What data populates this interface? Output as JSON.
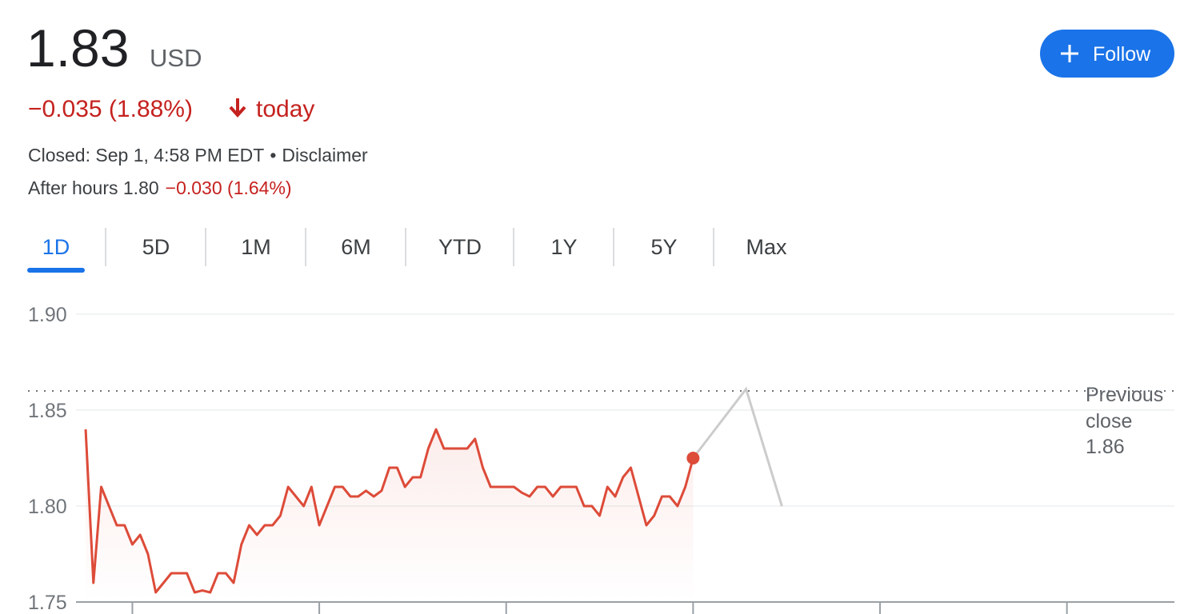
{
  "quote": {
    "price": "1.83",
    "currency": "USD",
    "change": "−0.035 (1.88%)",
    "period": "today",
    "status": "Closed: Sep 1, 4:58 PM EDT",
    "separator": "•",
    "disclaimer": "Disclaimer",
    "after_hours_label": "After hours 1.80",
    "after_hours_change": "−0.030 (1.64%)"
  },
  "follow_button": "Follow",
  "tabs": {
    "items": [
      "1D",
      "5D",
      "1M",
      "6M",
      "YTD",
      "1Y",
      "5Y",
      "Max"
    ],
    "active": 0
  },
  "chart_data": {
    "type": "line",
    "x": [
      570,
      575,
      580,
      585,
      590,
      595,
      600,
      605,
      610,
      615,
      620,
      625,
      630,
      635,
      640,
      645,
      650,
      655,
      660,
      665,
      670,
      675,
      680,
      685,
      690,
      695,
      700,
      705,
      710,
      715,
      720,
      725,
      730,
      735,
      740,
      745,
      750,
      755,
      760,
      765,
      770,
      775,
      780,
      785,
      790,
      795,
      800,
      805,
      810,
      815,
      820,
      825,
      830,
      835,
      840,
      845,
      850,
      855,
      860,
      865,
      870,
      875,
      880,
      885,
      890,
      895,
      900,
      905,
      910,
      915,
      920,
      925,
      930,
      935,
      940,
      945,
      950,
      955,
      960
    ],
    "series": [
      {
        "color": "#dd4b39",
        "values": [
          1.84,
          1.76,
          1.81,
          1.8,
          1.79,
          1.79,
          1.78,
          1.785,
          1.775,
          1.755,
          1.76,
          1.765,
          1.765,
          1.765,
          1.755,
          1.756,
          1.755,
          1.765,
          1.765,
          1.76,
          1.78,
          1.79,
          1.785,
          1.79,
          1.79,
          1.795,
          1.81,
          1.805,
          1.8,
          1.81,
          1.79,
          1.8,
          1.81,
          1.81,
          1.805,
          1.805,
          1.808,
          1.805,
          1.808,
          1.82,
          1.82,
          1.81,
          1.815,
          1.815,
          1.83,
          1.84,
          1.83,
          1.83,
          1.83,
          1.83,
          1.835,
          1.82,
          1.81,
          1.81,
          1.81,
          1.81,
          1.807,
          1.805,
          1.81,
          1.81,
          1.805,
          1.81,
          1.81,
          1.81,
          1.8,
          1.8,
          1.795,
          1.81,
          1.805,
          1.815,
          1.82,
          1.805,
          1.79,
          1.795,
          1.805,
          1.805,
          1.8,
          1.81,
          1.825
        ]
      }
    ],
    "after_hours": {
      "color": "#cccccc",
      "x": [
        960,
        994,
        1017
      ],
      "values": [
        1.825,
        1.861,
        1.8
      ]
    },
    "previous_close": {
      "label": "Previous close",
      "value": 1.86
    },
    "xlim": [
      533,
      1269
    ],
    "xticks": [
      600,
      720,
      840,
      960,
      1080,
      1200
    ],
    "ylim": [
      1.75,
      1.9
    ],
    "yticks": [
      {
        "value": 1.9,
        "label": "1.90"
      },
      1.85,
      {
        "value": 1.8,
        "label": "1.80"
      },
      1.75
    ],
    "grid": true
  }
}
